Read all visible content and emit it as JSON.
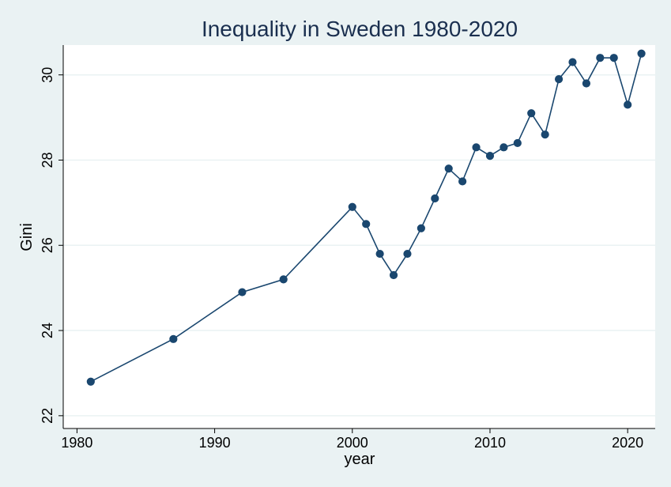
{
  "chart_data": {
    "type": "line",
    "title": "Inequality in Sweden 1980-2020",
    "xlabel": "year",
    "ylabel": "Gini",
    "xlim": [
      1979,
      2022
    ],
    "ylim": [
      21.7,
      30.7
    ],
    "xticks": [
      1980,
      1990,
      2000,
      2010,
      2020
    ],
    "yticks": [
      22,
      24,
      26,
      28,
      30
    ],
    "grid": true,
    "series": [
      {
        "x": [
          1981,
          1987,
          1992,
          1995,
          2000,
          2001,
          2002,
          2003,
          2004,
          2005,
          2006,
          2007,
          2008,
          2009,
          2010,
          2011,
          2012,
          2013,
          2014,
          2015,
          2016,
          2017,
          2018,
          2019,
          2020,
          2021
        ],
        "y": [
          22.8,
          23.8,
          24.9,
          25.2,
          26.9,
          26.5,
          25.8,
          25.3,
          25.8,
          26.4,
          27.1,
          27.8,
          27.5,
          28.3,
          28.1,
          28.3,
          28.4,
          29.1,
          28.6,
          29.9,
          30.3,
          29.8,
          30.4,
          30.4,
          29.3,
          30.5
        ]
      }
    ]
  },
  "colors": {
    "series": "#1a476f",
    "background": "#eaf2f3",
    "plot_background": "#ffffff",
    "title": "#1a2f4f"
  }
}
